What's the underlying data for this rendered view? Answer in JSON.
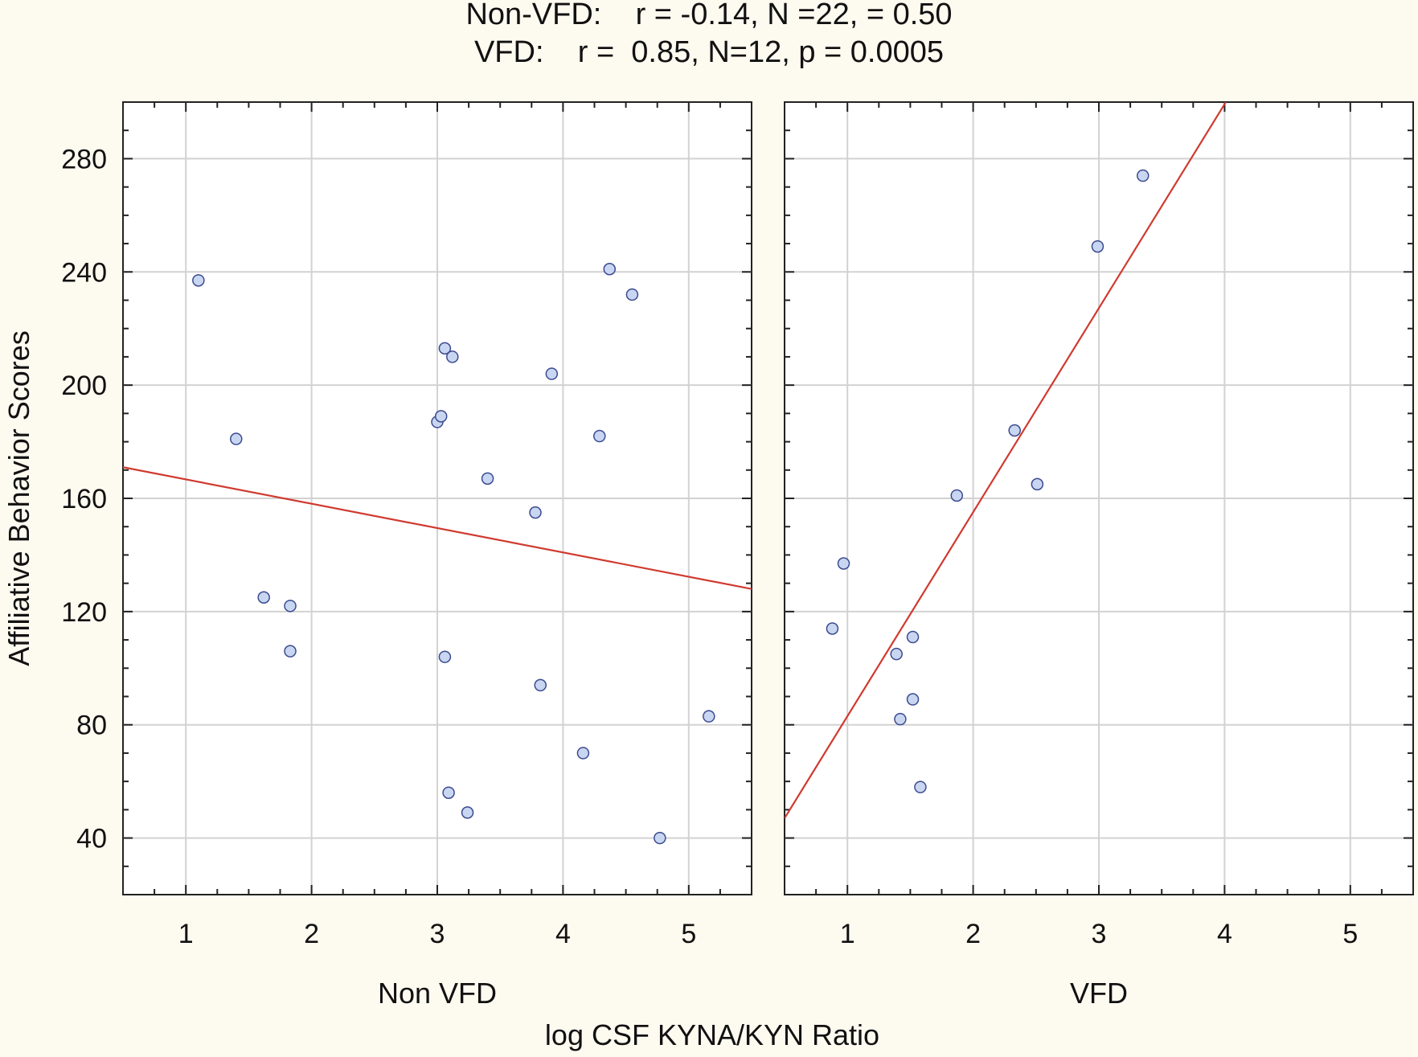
{
  "colors": {
    "background": "#fdfaf0",
    "plot_bg": "#ffffff",
    "point_fill": "#c9d6f1",
    "point_stroke": "#3b4a8f",
    "fit_line": "#d03a2f",
    "grid": "#d2d2d2"
  },
  "chart_data": {
    "type": "scatter",
    "title_lines": [
      "Non-VFD:    r = -0.14, N =22, = 0.50",
      "VFD:    r =  0.85, N=12, p = 0.0005"
    ],
    "ylabel": "Affiliative Behavior Scores",
    "xlabel": "log CSF KYNA/KYN Ratio",
    "ylim": [
      20,
      300
    ],
    "yticks": [
      40,
      80,
      120,
      160,
      200,
      240,
      280
    ],
    "xlim": [
      0.5,
      5.5
    ],
    "xticks": [
      1,
      2,
      3,
      4,
      5
    ],
    "grid": true,
    "panels": [
      {
        "label": "Non VFD",
        "points": [
          [
            1.1,
            237
          ],
          [
            1.4,
            181
          ],
          [
            1.62,
            125
          ],
          [
            1.83,
            122
          ],
          [
            1.83,
            106
          ],
          [
            3.0,
            187
          ],
          [
            3.03,
            189
          ],
          [
            3.06,
            213
          ],
          [
            3.12,
            210
          ],
          [
            3.06,
            104
          ],
          [
            3.09,
            56
          ],
          [
            3.24,
            49
          ],
          [
            3.4,
            167
          ],
          [
            3.78,
            155
          ],
          [
            3.82,
            94
          ],
          [
            3.91,
            204
          ],
          [
            4.16,
            70
          ],
          [
            4.29,
            182
          ],
          [
            4.37,
            241
          ],
          [
            4.55,
            232
          ],
          [
            4.77,
            40
          ],
          [
            5.16,
            83
          ]
        ],
        "fit": {
          "x": [
            0.5,
            5.5
          ],
          "y": [
            171,
            128
          ]
        }
      },
      {
        "label": "VFD",
        "points": [
          [
            0.88,
            114
          ],
          [
            0.97,
            137
          ],
          [
            1.39,
            105
          ],
          [
            1.42,
            82
          ],
          [
            1.52,
            111
          ],
          [
            1.52,
            89
          ],
          [
            1.58,
            58
          ],
          [
            1.87,
            161
          ],
          [
            2.33,
            184
          ],
          [
            2.51,
            165
          ],
          [
            2.99,
            249
          ],
          [
            3.35,
            274
          ]
        ],
        "fit": {
          "x": [
            0.5,
            4.01
          ],
          "y": [
            47,
            300
          ]
        }
      }
    ]
  }
}
